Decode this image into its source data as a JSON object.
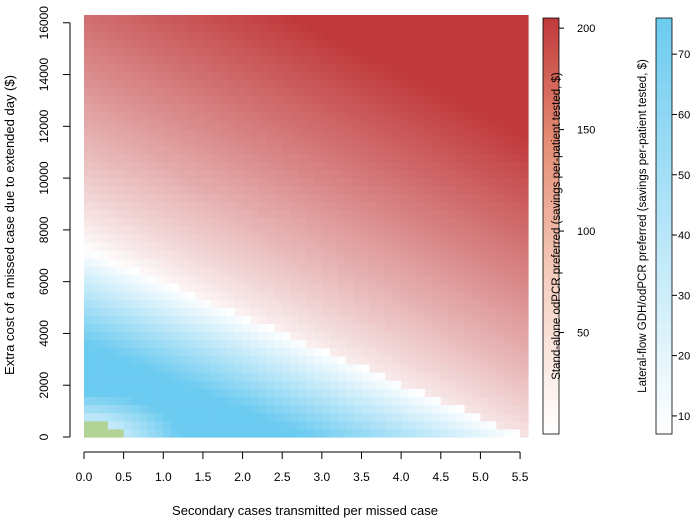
{
  "chart_data": {
    "type": "heatmap",
    "title": "",
    "xlabel": "Secondary cases transmitted per missed case",
    "ylabel": "Extra cost of a missed case due to extended day ($)",
    "x_ticks": [
      "0.0",
      "0.5",
      "1.0",
      "1.5",
      "2.0",
      "2.5",
      "3.0",
      "3.5",
      "4.0",
      "4.5",
      "5.0",
      "5.5"
    ],
    "y_ticks": [
      "0",
      "2000",
      "4000",
      "6000",
      "8000",
      "10000",
      "12000",
      "14000",
      "16000"
    ],
    "xlim": [
      0,
      5.6
    ],
    "ylim": [
      0,
      16300
    ],
    "breakeven_line": [
      {
        "x": 0,
        "y": 7300
      },
      {
        "x": 5.6,
        "y": 0
      }
    ],
    "regions": [
      {
        "name": "Stand-alone odPCR preferred (savings per-patient tested, $)",
        "color": "#c0393b",
        "scale_ticks": [
          "50",
          "100",
          "150",
          "200"
        ],
        "scale_range": [
          0,
          205
        ]
      },
      {
        "name": "Lateral-flow GDH/odPCR preferred (savings per-patient tested, $)",
        "color": "#6ccbf0",
        "scale_ticks": [
          "10",
          "20",
          "30",
          "40",
          "50",
          "60",
          "70"
        ],
        "scale_range": [
          7,
          76
        ]
      }
    ],
    "small_region_color": "#a8cf8a"
  }
}
